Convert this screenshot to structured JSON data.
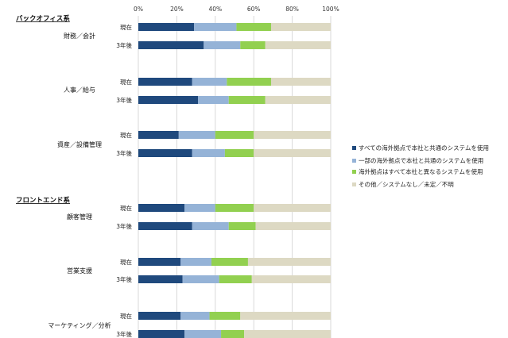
{
  "chart_data": {
    "type": "bar",
    "orientation": "horizontal",
    "stacked": "percent",
    "x_ticks": [
      "0%",
      "20%",
      "40%",
      "60%",
      "80%",
      "100%"
    ],
    "xlim": [
      0,
      100
    ],
    "grid": true,
    "legend_position": "right",
    "groups": [
      {
        "label": "バックオフィス系",
        "categories": [
          {
            "label": "財務／会計",
            "rows": [
              {
                "period": "現在",
                "values": [
                  29,
                  22,
                  18,
                  31
                ]
              },
              {
                "period": "3年後",
                "values": [
                  34,
                  19,
                  13,
                  34
                ]
              }
            ]
          },
          {
            "label": "人事／給与",
            "rows": [
              {
                "period": "現在",
                "values": [
                  28,
                  18,
                  23,
                  31
                ]
              },
              {
                "period": "3年後",
                "values": [
                  31,
                  16,
                  19,
                  34
                ]
              }
            ]
          },
          {
            "label": "資産／設備管理",
            "rows": [
              {
                "period": "現在",
                "values": [
                  21,
                  19,
                  20,
                  40
                ]
              },
              {
                "period": "3年後",
                "values": [
                  28,
                  17,
                  15,
                  40
                ]
              }
            ]
          }
        ]
      },
      {
        "label": "フロントエンド系",
        "categories": [
          {
            "label": "顧客管理",
            "rows": [
              {
                "period": "現在",
                "values": [
                  24,
                  16,
                  20,
                  40
                ]
              },
              {
                "period": "3年後",
                "values": [
                  28,
                  19,
                  14,
                  39
                ]
              }
            ]
          },
          {
            "label": "営業支援",
            "rows": [
              {
                "period": "現在",
                "values": [
                  22,
                  16,
                  19,
                  43
                ]
              },
              {
                "period": "3年後",
                "values": [
                  23,
                  19,
                  17,
                  41
                ]
              }
            ]
          },
          {
            "label": "マーケティング／分析",
            "rows": [
              {
                "period": "現在",
                "values": [
                  22,
                  15,
                  16,
                  47
                ]
              },
              {
                "period": "3年後",
                "values": [
                  24,
                  19,
                  12,
                  45
                ]
              }
            ]
          }
        ]
      }
    ],
    "series": [
      {
        "name": "すべての海外拠点で本社と共通のシステムを使用",
        "color": "#1f497d"
      },
      {
        "name": "一部の海外拠点で本社と共通のシステムを使用",
        "color": "#95b3d7"
      },
      {
        "name": "海外拠点はすべて本社と異なるシステムを使用",
        "color": "#92d050"
      },
      {
        "name": "その他／システムなし／未定／不明",
        "color": "#ddd9c3"
      }
    ]
  }
}
